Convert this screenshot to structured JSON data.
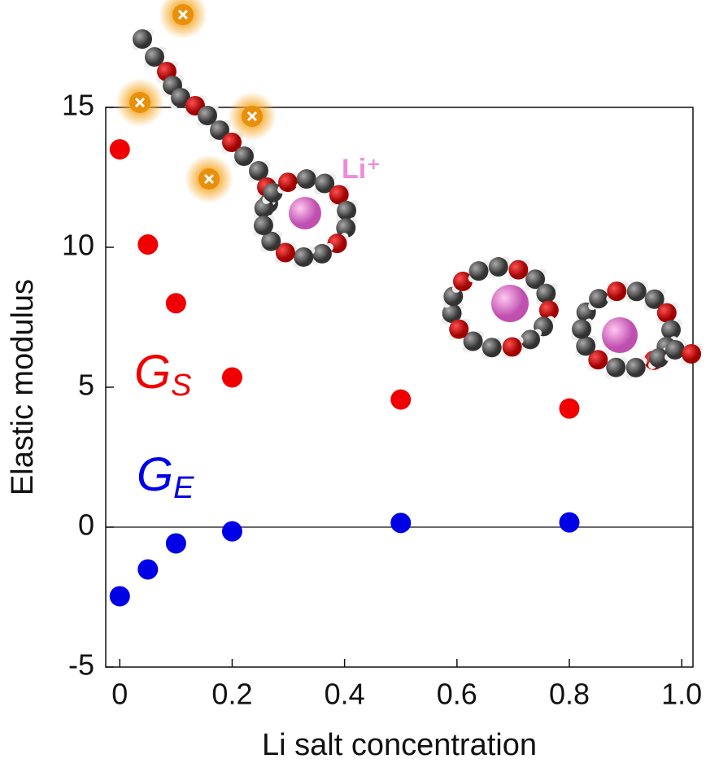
{
  "chart_data": {
    "type": "scatter",
    "x_label": "Li salt concentration",
    "y_label": "Elastic modulus",
    "xlim": [
      -0.025,
      1.02
    ],
    "ylim": [
      -5,
      15
    ],
    "xticks": [
      0,
      0.2,
      0.4,
      0.6,
      0.8,
      {
        "value": 1,
        "label": "1.0"
      }
    ],
    "yticks": [
      -5,
      0,
      5,
      10,
      15
    ],
    "hline": 0,
    "annotation": "Li⁺",
    "series": [
      {
        "name": "G",
        "subscript": "S",
        "color": "#f00000",
        "x": [
          0,
          0.05,
          0.1,
          0.2,
          0.5,
          0.8
        ],
        "values": [
          13.5,
          10.1,
          8.0,
          5.35,
          4.56,
          4.24
        ]
      },
      {
        "name": "G",
        "subscript": "E",
        "color": "#0000e6",
        "x": [
          0,
          0.05,
          0.1,
          0.2,
          0.5,
          0.8
        ],
        "values": [
          -2.47,
          -1.51,
          -0.58,
          -0.15,
          0.15,
          0.17
        ]
      }
    ]
  }
}
